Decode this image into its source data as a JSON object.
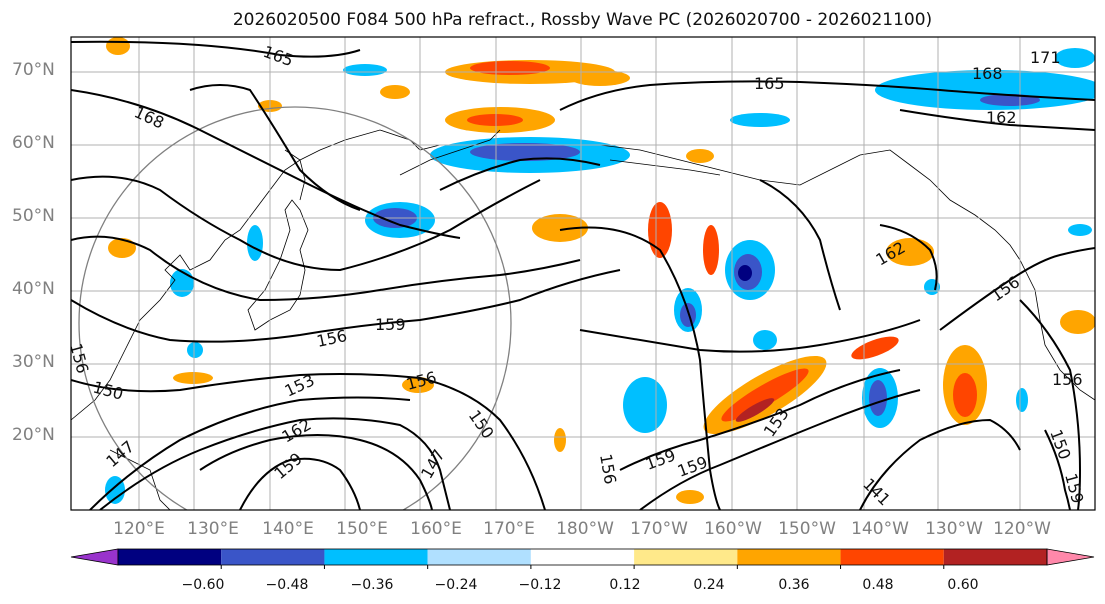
{
  "title": "2026020500 F084 500 hPa refract., Rossby Wave PC (2026020700 - 2026021100)",
  "lat_labels": [
    "70°N",
    "60°N",
    "50°N",
    "40°N",
    "30°N",
    "20°N"
  ],
  "lon_labels": [
    "120°E",
    "130°E",
    "140°E",
    "150°E",
    "160°E",
    "170°E",
    "180°W",
    "170°W",
    "160°W",
    "150°W",
    "140°W",
    "130°W",
    "120°W"
  ],
  "contour_labels": [
    "165",
    "168",
    "165",
    "168",
    "162",
    "171",
    "159",
    "156",
    "156",
    "150",
    "153",
    "156",
    "150",
    "162",
    "159",
    "147",
    "147",
    "162",
    "156",
    "159",
    "159",
    "153",
    "141",
    "156",
    "156",
    "150",
    "159"
  ],
  "colorbar": {
    "colors": [
      "#9933cc",
      "#000080",
      "#3a55c8",
      "#00bfff",
      "#b0e0ff",
      "#ffffff",
      "#ffe98a",
      "#ffa500",
      "#ff4500",
      "#b22222",
      "#ff88aa"
    ],
    "tick_labels": [
      "−0.60",
      "−0.48",
      "−0.36",
      "−0.24",
      "−0.12",
      "0.12",
      "0.24",
      "0.36",
      "0.48",
      "0.60"
    ]
  },
  "colors": {
    "negative_strong": "#3a55c8",
    "negative": "#00bfff",
    "positive": "#ffa500",
    "positive_strong": "#ff4500",
    "contour": "#000000",
    "grid": "#b0b0b0"
  }
}
